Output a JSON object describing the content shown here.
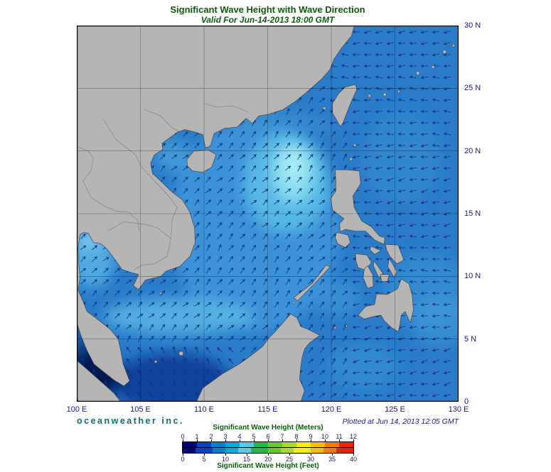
{
  "header": {
    "title": "Significant Wave Height with Wave Direction",
    "subtitle": "Valid For Jun-14-2013 18:00 GMT"
  },
  "axes": {
    "lon_ticks": [
      "100 E",
      "105 E",
      "110 E",
      "115 E",
      "120 E",
      "125 E",
      "130 E"
    ],
    "lat_ticks": [
      "30 N",
      "25 N",
      "20 N",
      "15 N",
      "10 N",
      "5 N",
      "0"
    ]
  },
  "footer": {
    "branding": "oceanweather inc.",
    "plotted": "Plotted at Jun 14, 2013 12:05 GMT"
  },
  "legend": {
    "meters_label": "Significant Wave Height (Meters)",
    "feet_label": "Significant Wave Height (Feet)",
    "meter_ticks": [
      "0",
      "1",
      "2",
      "3",
      "4",
      "5",
      "6",
      "7",
      "8",
      "9",
      "10",
      "11",
      "12"
    ],
    "feet_ticks": [
      "0",
      "5",
      "10",
      "15",
      "20",
      "25",
      "30",
      "35",
      "40"
    ],
    "colors": [
      "#000080",
      "#0040cc",
      "#0080dd",
      "#00aae0",
      "#55cce8",
      "#22bb44",
      "#66cc22",
      "#aadd22",
      "#ffee00",
      "#ffbb00",
      "#ff7700",
      "#ee2200"
    ]
  },
  "chart_data": {
    "type": "heatmap",
    "title": "Significant Wave Height with Wave Direction",
    "valid_time": "Jun-14-2013 18:00 GMT",
    "plotted_time": "Jun 14, 2013 12:05 GMT",
    "extent": {
      "lon": [
        100,
        130
      ],
      "lat": [
        0,
        30
      ]
    },
    "units": {
      "primary": "meters",
      "secondary": "feet"
    },
    "colorbar": {
      "meters_range": [
        0,
        12
      ],
      "feet_range": [
        0,
        40
      ]
    },
    "vector_overlay": "wave direction arrows (pointing downwind/propagation direction)",
    "estimated_regions": [
      {
        "region": "Northern South China Sea (~117E 18N) cyan patch",
        "hs_m": 2.5
      },
      {
        "region": "Central South China Sea",
        "hs_m": 1.5
      },
      {
        "region": "Philippine Sea / Western Pacific (east of 121E)",
        "hs_m": 1.5
      },
      {
        "region": "Gulf of Thailand",
        "hs_m": 1.0
      },
      {
        "region": "Java Sea / Karimata Strait",
        "hs_m": 0.5
      },
      {
        "region": "Malacca Strait / NE Sumatra coast",
        "hs_m": 0.25
      }
    ],
    "wave_directions": {
      "south_china_sea": "northeastward (SW monsoon)",
      "western_pacific": "westward (easterly trades)"
    }
  }
}
